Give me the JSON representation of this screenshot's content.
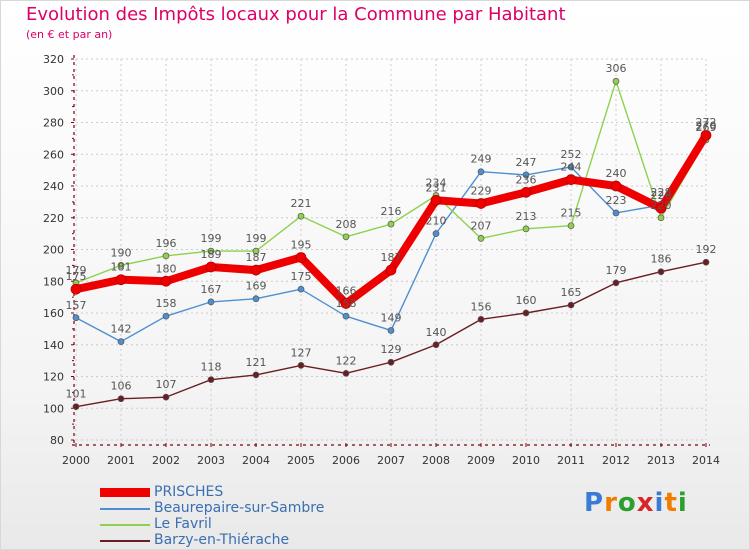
{
  "header": {
    "title": "Evolution des Impôts locaux pour la Commune par Habitant",
    "subtitle": "(en € et par an)"
  },
  "colors": {
    "title": "#dd0066",
    "axis": "#7a0011",
    "grid": "#cccccc",
    "label": "#555555",
    "legend_text": "#3a6fb0"
  },
  "logo": {
    "text": "Proxiti",
    "letter_colors": [
      "#3a7bd5",
      "#f07d00",
      "#2ca02c",
      "#d62728",
      "#3a7bd5",
      "#f07d00",
      "#2ca02c"
    ]
  },
  "chart_data": {
    "type": "line",
    "x": [
      2000,
      2001,
      2002,
      2003,
      2004,
      2005,
      2006,
      2007,
      2008,
      2009,
      2010,
      2011,
      2012,
      2013,
      2014
    ],
    "ylim": [
      80,
      320
    ],
    "yticks": [
      80,
      100,
      120,
      140,
      160,
      180,
      200,
      220,
      240,
      260,
      280,
      300,
      320
    ],
    "grid": true,
    "legend_position": "bottom-left",
    "series": [
      {
        "name": "Barzy-en-Thiérache",
        "color": "#6b1e22",
        "values": [
          101,
          106,
          107,
          118,
          121,
          127,
          122,
          129,
          140,
          156,
          160,
          165,
          179,
          186,
          192
        ]
      },
      {
        "name": "Beaurepaire-sur-Sambre",
        "color": "#4f8fd0",
        "values": [
          157,
          142,
          158,
          167,
          169,
          175,
          158,
          149,
          210,
          249,
          247,
          252,
          223,
          228,
          270
        ]
      },
      {
        "name": "Le Favril",
        "color": "#8fd14f",
        "values": [
          179,
          190,
          196,
          199,
          199,
          221,
          208,
          216,
          234,
          207,
          213,
          215,
          306,
          220,
          269
        ]
      },
      {
        "name": "PRISCHES",
        "color": "#ee0000",
        "values": [
          175,
          181,
          180,
          189,
          187,
          195,
          166,
          187,
          231,
          229,
          236,
          244,
          240,
          226,
          272
        ]
      }
    ],
    "legend": [
      "PRISCHES",
      "Beaurepaire-sur-Sambre",
      "Le Favril",
      "Barzy-en-Thiérache"
    ]
  }
}
